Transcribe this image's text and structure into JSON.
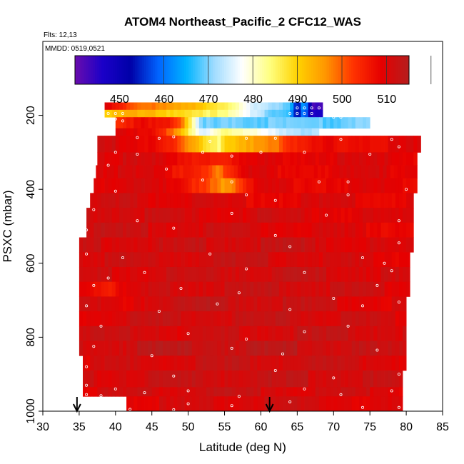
{
  "chart_data": {
    "type": "heatmap",
    "title": "ATOM4 Northeast_Pacific_2 CFC12_WAS",
    "subtitle_lines": [
      "Flts: 12,13",
      "MMDD: 0519,0521"
    ],
    "xlabel": "Latitude (deg N)",
    "ylabel": "PSXC (mbar)",
    "xlim": [
      30,
      85
    ],
    "ylim": [
      1000,
      0
    ],
    "xticks": [
      30,
      35,
      40,
      45,
      50,
      55,
      60,
      65,
      70,
      75,
      80,
      85
    ],
    "yticks": [
      200,
      400,
      600,
      800,
      1000
    ],
    "colorbar": {
      "range": [
        440,
        515
      ],
      "ticks": [
        450,
        460,
        470,
        480,
        490,
        500,
        510
      ],
      "colors": [
        "#6a0dad",
        "#1a00c8",
        "#0000a8",
        "#0064ff",
        "#00b4ff",
        "#a0dcff",
        "#ffffff",
        "#ffff80",
        "#ffd200",
        "#ff9600",
        "#ff3200",
        "#e60000",
        "#b41e1e"
      ]
    },
    "rows": [
      {
        "p_top": 165,
        "p_bot": 185,
        "x_start": 38.5,
        "x_end": 68.5,
        "profile": [
          [
            38.5,
            512
          ],
          [
            42,
            503
          ],
          [
            47,
            496
          ],
          [
            52,
            492
          ],
          [
            56,
            486
          ],
          [
            59,
            477
          ],
          [
            62,
            471
          ],
          [
            64,
            469
          ],
          [
            65,
            452
          ],
          [
            66,
            465
          ],
          [
            67,
            445
          ],
          [
            68.5,
            445
          ]
        ]
      },
      {
        "p_top": 185,
        "p_bot": 205,
        "x_start": 38.5,
        "x_end": 68.5,
        "profile": [
          [
            38.5,
            490
          ],
          [
            42,
            494
          ],
          [
            47,
            492
          ],
          [
            52,
            488
          ],
          [
            56,
            482
          ],
          [
            59,
            475
          ],
          [
            62,
            470
          ],
          [
            64,
            468
          ],
          [
            65,
            452
          ],
          [
            66,
            465
          ],
          [
            67,
            447
          ],
          [
            68.5,
            447
          ]
        ]
      },
      {
        "p_top": 205,
        "p_bot": 235,
        "x_start": 40,
        "x_end": 75,
        "profile": [
          [
            40,
            505
          ],
          [
            44,
            510
          ],
          [
            47,
            506
          ],
          [
            49,
            500
          ],
          [
            51,
            478
          ],
          [
            52,
            468
          ],
          [
            53,
            470
          ],
          [
            55,
            472
          ],
          [
            60,
            470
          ],
          [
            65,
            469
          ],
          [
            70,
            470
          ],
          [
            75,
            473
          ]
        ]
      },
      {
        "p_top": 235,
        "p_bot": 255,
        "x_start": 40,
        "x_end": 68,
        "profile": [
          [
            40,
            510
          ],
          [
            45,
            508
          ],
          [
            48,
            500
          ],
          [
            51,
            482
          ],
          [
            52,
            476
          ],
          [
            53,
            480
          ],
          [
            55,
            484
          ],
          [
            60,
            478
          ],
          [
            65,
            474
          ],
          [
            68,
            474
          ]
        ]
      },
      {
        "p_top": 255,
        "p_bot": 300,
        "x_start": 37.5,
        "x_end": 82,
        "profile": [
          [
            37.5,
            512
          ],
          [
            45,
            510
          ],
          [
            48,
            505
          ],
          [
            50,
            497
          ],
          [
            52,
            490
          ],
          [
            54.5,
            483
          ],
          [
            55,
            492
          ],
          [
            58,
            496
          ],
          [
            62,
            500
          ],
          [
            65,
            505
          ],
          [
            70,
            509
          ],
          [
            82,
            510
          ]
        ]
      },
      {
        "p_top": 300,
        "p_bot": 335,
        "x_start": 37.5,
        "x_end": 81.5,
        "profile": [
          [
            37.5,
            512
          ],
          [
            45,
            511
          ],
          [
            50,
            508
          ],
          [
            55,
            507
          ],
          [
            60,
            510
          ],
          [
            70,
            511
          ],
          [
            81.5,
            510
          ]
        ]
      },
      {
        "p_top": 335,
        "p_bot": 370,
        "x_start": 37.3,
        "x_end": 81.5,
        "profile": [
          [
            37.3,
            512
          ],
          [
            45,
            510
          ],
          [
            52,
            506
          ],
          [
            54,
            500
          ],
          [
            56,
            503
          ],
          [
            58,
            510
          ],
          [
            70,
            510
          ],
          [
            81.5,
            511
          ]
        ]
      },
      {
        "p_top": 370,
        "p_bot": 410,
        "x_start": 37,
        "x_end": 81.5,
        "profile": [
          [
            37,
            511
          ],
          [
            43,
            512
          ],
          [
            48,
            509
          ],
          [
            52,
            505
          ],
          [
            55,
            497
          ],
          [
            57,
            503
          ],
          [
            60,
            510
          ],
          [
            81.5,
            510
          ]
        ]
      },
      {
        "p_top": 410,
        "p_bot": 450,
        "x_start": 36.5,
        "x_end": 81,
        "profile": [
          [
            36.5,
            511
          ],
          [
            40,
            512
          ],
          [
            50,
            511
          ],
          [
            60,
            510
          ],
          [
            70,
            511
          ],
          [
            81,
            510
          ]
        ]
      },
      {
        "p_top": 450,
        "p_bot": 490,
        "x_start": 36,
        "x_end": 81,
        "profile": [
          [
            36,
            512
          ],
          [
            40,
            513
          ],
          [
            50,
            511
          ],
          [
            60,
            512
          ],
          [
            70,
            511
          ],
          [
            81,
            510
          ]
        ]
      },
      {
        "p_top": 490,
        "p_bot": 530,
        "x_start": 36,
        "x_end": 81,
        "profile": [
          [
            36,
            513
          ],
          [
            45,
            512
          ],
          [
            55,
            512
          ],
          [
            65,
            511
          ],
          [
            75,
            510
          ],
          [
            81,
            510
          ]
        ]
      },
      {
        "p_top": 530,
        "p_bot": 570,
        "x_start": 35,
        "x_end": 81,
        "profile": [
          [
            35,
            512
          ],
          [
            45,
            512
          ],
          [
            55,
            513
          ],
          [
            65,
            513
          ],
          [
            75,
            511
          ],
          [
            81,
            510
          ]
        ]
      },
      {
        "p_top": 570,
        "p_bot": 610,
        "x_start": 35,
        "x_end": 80.5,
        "profile": [
          [
            35,
            512
          ],
          [
            45,
            512
          ],
          [
            55,
            513
          ],
          [
            65,
            512
          ],
          [
            75,
            511
          ],
          [
            80.5,
            510
          ]
        ]
      },
      {
        "p_top": 610,
        "p_bot": 650,
        "x_start": 35,
        "x_end": 80.5,
        "profile": [
          [
            35,
            512
          ],
          [
            45,
            512
          ],
          [
            55,
            513
          ],
          [
            65,
            513
          ],
          [
            75,
            512
          ],
          [
            80.5,
            511
          ]
        ]
      },
      {
        "p_top": 650,
        "p_bot": 690,
        "x_start": 35,
        "x_end": 80.5,
        "profile": [
          [
            35,
            511
          ],
          [
            39,
            507
          ],
          [
            41,
            509
          ],
          [
            45,
            512
          ],
          [
            55,
            513
          ],
          [
            65,
            513
          ],
          [
            75,
            512
          ],
          [
            80.5,
            511
          ]
        ]
      },
      {
        "p_top": 690,
        "p_bot": 730,
        "x_start": 35,
        "x_end": 80,
        "profile": [
          [
            35,
            512
          ],
          [
            41,
            510
          ],
          [
            45,
            513
          ],
          [
            55,
            514
          ],
          [
            65,
            513
          ],
          [
            75,
            511
          ],
          [
            80,
            511
          ]
        ]
      },
      {
        "p_top": 730,
        "p_bot": 770,
        "x_start": 35,
        "x_end": 80,
        "profile": [
          [
            35,
            511
          ],
          [
            45,
            513
          ],
          [
            55,
            513
          ],
          [
            65,
            513
          ],
          [
            75,
            512
          ],
          [
            80,
            511
          ]
        ]
      },
      {
        "p_top": 770,
        "p_bot": 810,
        "x_start": 35,
        "x_end": 80,
        "profile": [
          [
            35,
            512
          ],
          [
            45,
            513
          ],
          [
            50,
            511
          ],
          [
            55,
            512
          ],
          [
            65,
            513
          ],
          [
            75,
            513
          ],
          [
            80,
            512
          ]
        ]
      },
      {
        "p_top": 810,
        "p_bot": 850,
        "x_start": 35,
        "x_end": 80,
        "profile": [
          [
            35,
            512
          ],
          [
            45,
            514
          ],
          [
            55,
            514
          ],
          [
            65,
            514
          ],
          [
            75,
            513
          ],
          [
            80,
            512
          ]
        ]
      },
      {
        "p_top": 850,
        "p_bot": 890,
        "x_start": 35.5,
        "x_end": 80,
        "profile": [
          [
            35.5,
            511
          ],
          [
            45,
            512
          ],
          [
            55,
            513
          ],
          [
            65,
            513
          ],
          [
            75,
            512
          ],
          [
            80,
            511
          ]
        ]
      },
      {
        "p_top": 890,
        "p_bot": 935,
        "x_start": 35.5,
        "x_end": 79.5,
        "profile": [
          [
            35.5,
            512
          ],
          [
            45,
            513
          ],
          [
            55,
            513
          ],
          [
            65,
            513
          ],
          [
            75,
            513
          ],
          [
            79.5,
            512
          ]
        ]
      },
      {
        "p_top": 935,
        "p_bot": 960,
        "x_start": 35.5,
        "x_end": 79.5,
        "profile": [
          [
            35.5,
            511
          ],
          [
            45,
            512
          ],
          [
            55,
            513
          ],
          [
            65,
            512
          ],
          [
            75,
            512
          ],
          [
            79.5,
            511
          ]
        ]
      },
      {
        "p_top": 960,
        "p_bot": 1000,
        "x_start": 41.5,
        "x_end": 79.5,
        "profile": [
          [
            41.5,
            511
          ],
          [
            50,
            511
          ],
          [
            55,
            512
          ],
          [
            65,
            512
          ],
          [
            75,
            511
          ],
          [
            79.5,
            510
          ]
        ]
      }
    ],
    "sample_points": [
      [
        39,
        195
      ],
      [
        40,
        195
      ],
      [
        41,
        195
      ],
      [
        65,
        180
      ],
      [
        66,
        180
      ],
      [
        67,
        180
      ],
      [
        68,
        180
      ],
      [
        64,
        195
      ],
      [
        65,
        195
      ],
      [
        66,
        195
      ],
      [
        67,
        195
      ],
      [
        70,
        205
      ],
      [
        71,
        205
      ],
      [
        40,
        210
      ],
      [
        41,
        215
      ],
      [
        43,
        260
      ],
      [
        46,
        262
      ],
      [
        48,
        258
      ],
      [
        53,
        270
      ],
      [
        58,
        262
      ],
      [
        62,
        262
      ],
      [
        71,
        265
      ],
      [
        79,
        285
      ],
      [
        78,
        265
      ],
      [
        40,
        300
      ],
      [
        43,
        305
      ],
      [
        52,
        300
      ],
      [
        56,
        310
      ],
      [
        60,
        300
      ],
      [
        66,
        300
      ],
      [
        75,
        305
      ],
      [
        39,
        335
      ],
      [
        47,
        345
      ],
      [
        52,
        375
      ],
      [
        56,
        380
      ],
      [
        68,
        380
      ],
      [
        72,
        380
      ],
      [
        80,
        400
      ],
      [
        40,
        405
      ],
      [
        58,
        415
      ],
      [
        62,
        430
      ],
      [
        72,
        415
      ],
      [
        37,
        455
      ],
      [
        43,
        485
      ],
      [
        56,
        465
      ],
      [
        69,
        470
      ],
      [
        79,
        485
      ],
      [
        36,
        510
      ],
      [
        48,
        505
      ],
      [
        62,
        525
      ],
      [
        79,
        545
      ],
      [
        36,
        575
      ],
      [
        41,
        585
      ],
      [
        53,
        575
      ],
      [
        64,
        555
      ],
      [
        74,
        585
      ],
      [
        77,
        600
      ],
      [
        39,
        640
      ],
      [
        44,
        625
      ],
      [
        58,
        615
      ],
      [
        66,
        625
      ],
      [
        78,
        620
      ],
      [
        37,
        660
      ],
      [
        49,
        668
      ],
      [
        57,
        680
      ],
      [
        70,
        695
      ],
      [
        76,
        660
      ],
      [
        36,
        715
      ],
      [
        46,
        730
      ],
      [
        54,
        710
      ],
      [
        64,
        725
      ],
      [
        74,
        715
      ],
      [
        79,
        705
      ],
      [
        38,
        770
      ],
      [
        50,
        790
      ],
      [
        58,
        805
      ],
      [
        66,
        785
      ],
      [
        72,
        770
      ],
      [
        37,
        825
      ],
      [
        45,
        850
      ],
      [
        56,
        830
      ],
      [
        63,
        845
      ],
      [
        76,
        835
      ],
      [
        36,
        880
      ],
      [
        48,
        905
      ],
      [
        62,
        890
      ],
      [
        70,
        910
      ],
      [
        79,
        900
      ],
      [
        36,
        930
      ],
      [
        40,
        940
      ],
      [
        44,
        950
      ],
      [
        50,
        945
      ],
      [
        57,
        960
      ],
      [
        66,
        940
      ],
      [
        71,
        955
      ],
      [
        78,
        945
      ],
      [
        36,
        955
      ],
      [
        38,
        958
      ],
      [
        50,
        980
      ],
      [
        56,
        985
      ],
      [
        64,
        975
      ],
      [
        74,
        990
      ],
      [
        79,
        990
      ],
      [
        42,
        995
      ],
      [
        48,
        996
      ]
    ],
    "arrows_x": [
      34.7,
      61.2
    ]
  }
}
